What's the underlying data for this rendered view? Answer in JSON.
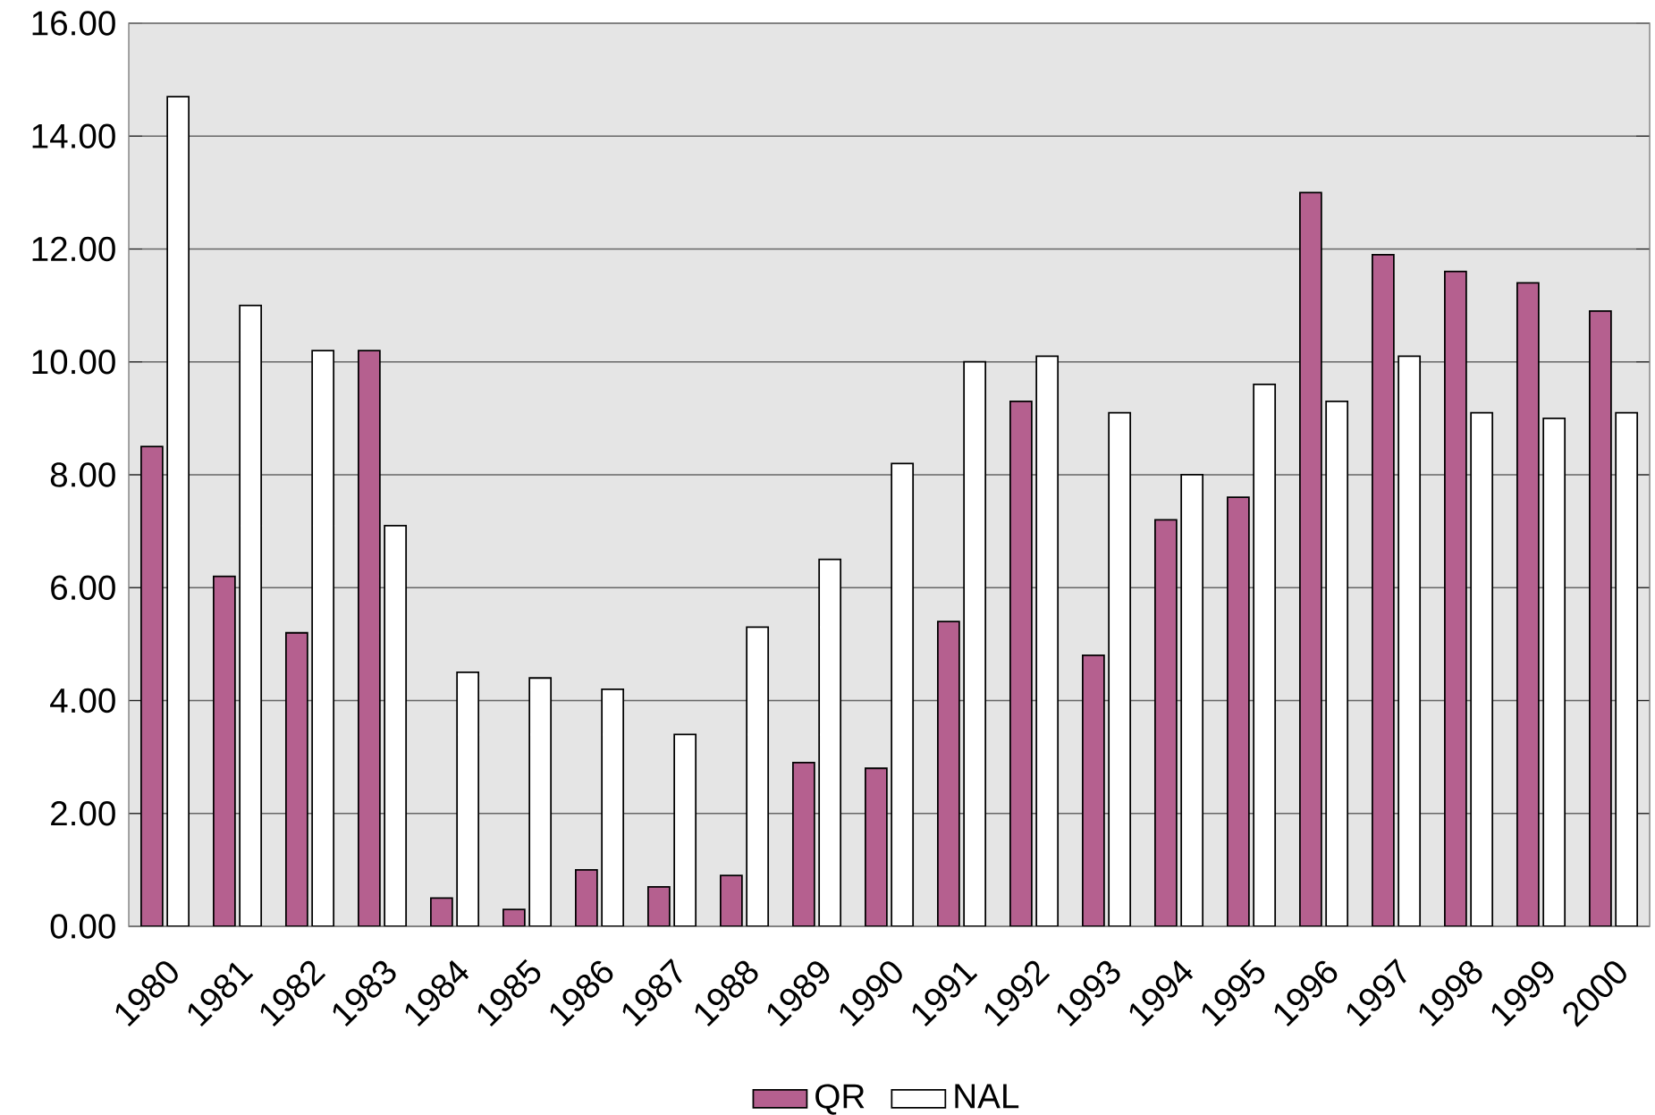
{
  "chart_data": {
    "type": "bar",
    "categories": [
      "1980",
      "1981",
      "1982",
      "1983",
      "1984",
      "1985",
      "1986",
      "1987",
      "1988",
      "1989",
      "1990",
      "1991",
      "1992",
      "1993",
      "1994",
      "1995",
      "1996",
      "1997",
      "1998",
      "1999",
      "2000"
    ],
    "series": [
      {
        "name": "QR",
        "color": "#b5608f",
        "values": [
          8.5,
          6.2,
          5.2,
          10.2,
          0.5,
          0.3,
          1.0,
          0.7,
          0.9,
          2.9,
          2.8,
          5.4,
          9.3,
          4.8,
          7.2,
          7.6,
          13.0,
          11.9,
          11.6,
          11.4,
          10.9
        ]
      },
      {
        "name": "NAL",
        "color": "#ffffff",
        "values": [
          14.7,
          11.0,
          10.2,
          7.1,
          4.5,
          4.4,
          4.2,
          3.4,
          5.3,
          6.5,
          8.2,
          10.0,
          10.1,
          9.1,
          8.0,
          9.6,
          9.3,
          10.1,
          9.1,
          9.0,
          9.1
        ]
      }
    ],
    "ylim": [
      0,
      16
    ],
    "yticks": [
      {
        "value": 0,
        "label": "0.00"
      },
      {
        "value": 2,
        "label": "2.00"
      },
      {
        "value": 4,
        "label": "4.00"
      },
      {
        "value": 6,
        "label": "6.00"
      },
      {
        "value": 8,
        "label": "8.00"
      },
      {
        "value": 10,
        "label": "10.00"
      },
      {
        "value": 12,
        "label": "12.00"
      },
      {
        "value": 14,
        "label": "14.00"
      },
      {
        "value": 16,
        "label": "16.00"
      }
    ],
    "grid": "y",
    "legend": "bottom"
  }
}
